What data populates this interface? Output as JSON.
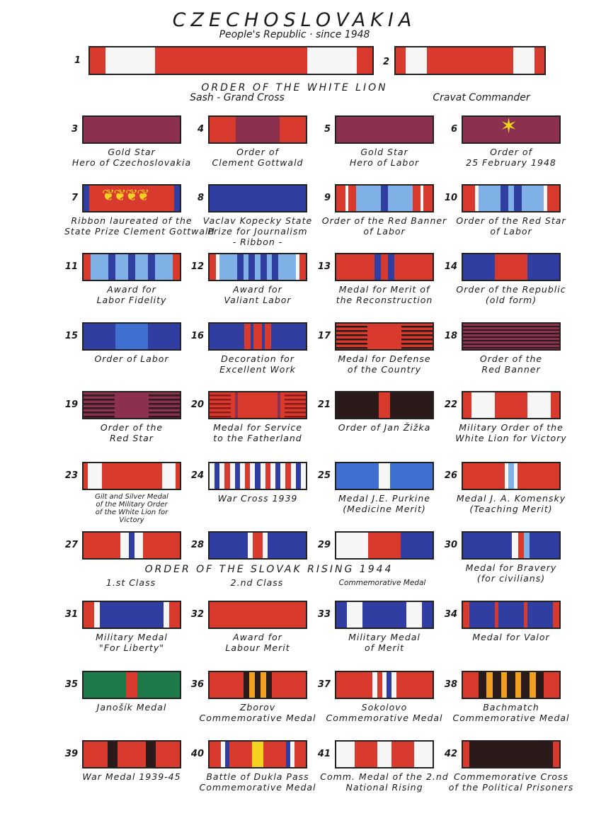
{
  "header": {
    "title": "CZECHOSLOVAKIA",
    "subtitle": "People's Republic · since 1948"
  },
  "white_lion": {
    "title": "ORDER OF THE WHITE LION",
    "sash_label": "Sash - Grand Cross",
    "cravat_label": "Cravat Commander",
    "n1": "1",
    "n2": "2"
  },
  "slovak_rising": {
    "title": "ORDER OF THE SLOVAK RISING 1944",
    "class1": "1.st Class",
    "class2": "2.nd Class",
    "commemorative": "Commemorative Medal"
  },
  "colors": {
    "red": "#d83a2e",
    "white": "#f6f6f6",
    "maroon": "#8c3050",
    "blue": "#2f3ea0",
    "light_blue": "#7fb0e6",
    "mid_blue": "#3f6fd0",
    "dark": "#2a1a1a",
    "green": "#1f7a4a",
    "yellow": "#f5d21f",
    "orange": "#f0a020"
  },
  "ribbons": [
    {
      "n": "3",
      "lines": [
        "Gold Star",
        "Hero of Czechoslovakia"
      ]
    },
    {
      "n": "4",
      "lines": [
        "Order of",
        "Clement Gottwald"
      ]
    },
    {
      "n": "5",
      "lines": [
        "Gold Star",
        "Hero of Labor"
      ]
    },
    {
      "n": "6",
      "lines": [
        "Order of",
        "25 February 1948"
      ]
    },
    {
      "n": "7",
      "lines": [
        "Ribbon laureated of the",
        "State Prize Clement Gottwald"
      ]
    },
    {
      "n": "8",
      "lines": [
        "Vaclav Kopecky State",
        "Prize for Journalism",
        "- Ribbon -"
      ]
    },
    {
      "n": "9",
      "lines": [
        "Order of the Red Banner",
        "of Labor"
      ]
    },
    {
      "n": "10",
      "lines": [
        "Order of the Red Star",
        "of Labor"
      ]
    },
    {
      "n": "11",
      "lines": [
        "Award for",
        "Labor Fidelity"
      ]
    },
    {
      "n": "12",
      "lines": [
        "Award for",
        "Valiant Labor"
      ]
    },
    {
      "n": "13",
      "lines": [
        "Medal for Merit of",
        "the Reconstruction"
      ]
    },
    {
      "n": "14",
      "lines": [
        "Order of the Republic",
        "(old form)"
      ]
    },
    {
      "n": "15",
      "lines": [
        "Order of Labor"
      ]
    },
    {
      "n": "16",
      "lines": [
        "Decoration for",
        "Excellent Work"
      ]
    },
    {
      "n": "17",
      "lines": [
        "Medal for Defense",
        "of the Country"
      ]
    },
    {
      "n": "18",
      "lines": [
        "Order of the",
        "Red Banner"
      ]
    },
    {
      "n": "19",
      "lines": [
        "Order of the",
        "Red Star"
      ]
    },
    {
      "n": "20",
      "lines": [
        "Medal for Service",
        "to the Fatherland"
      ]
    },
    {
      "n": "21",
      "lines": [
        "Order of Jan Žižka"
      ]
    },
    {
      "n": "22",
      "lines": [
        "Military Order of the",
        "White Lion for Victory"
      ]
    },
    {
      "n": "23",
      "lines": [
        "Gilt and Silver Medal",
        "of the Military Order",
        "of the White Lion for",
        "Victory"
      ]
    },
    {
      "n": "24",
      "lines": [
        "War Cross 1939"
      ]
    },
    {
      "n": "25",
      "lines": [
        "Medal J.E. Purkine",
        "(Medicine Merit)"
      ]
    },
    {
      "n": "26",
      "lines": [
        "Medal J. A. Komensky",
        "(Teaching Merit)"
      ]
    },
    {
      "n": "27",
      "lines": []
    },
    {
      "n": "28",
      "lines": []
    },
    {
      "n": "29",
      "lines": []
    },
    {
      "n": "30",
      "lines": [
        "Medal for Bravery",
        "(for civilians)"
      ]
    },
    {
      "n": "31",
      "lines": [
        "Military Medal",
        "\"For Liberty\""
      ]
    },
    {
      "n": "32",
      "lines": [
        "Award for",
        "Labour Merit"
      ]
    },
    {
      "n": "33",
      "lines": [
        "Military Medal",
        "of Merit"
      ]
    },
    {
      "n": "34",
      "lines": [
        "Medal for Valor"
      ]
    },
    {
      "n": "35",
      "lines": [
        "Janošík Medal"
      ]
    },
    {
      "n": "36",
      "lines": [
        "Zborov",
        "Commemorative Medal"
      ]
    },
    {
      "n": "37",
      "lines": [
        "Sokolovo",
        "Commemorative Medal"
      ]
    },
    {
      "n": "38",
      "lines": [
        "Bachmatch",
        "Commemorative Medal"
      ]
    },
    {
      "n": "39",
      "lines": [
        "War Medal 1939-45"
      ]
    },
    {
      "n": "40",
      "lines": [
        "Battle of Dukla Pass",
        "Commemorative Medal"
      ]
    },
    {
      "n": "41",
      "lines": [
        "Comm. Medal of the 2.nd",
        "National Rising"
      ]
    },
    {
      "n": "42",
      "lines": [
        "Commemorative Cross",
        "of the Political Prisoners"
      ]
    }
  ]
}
